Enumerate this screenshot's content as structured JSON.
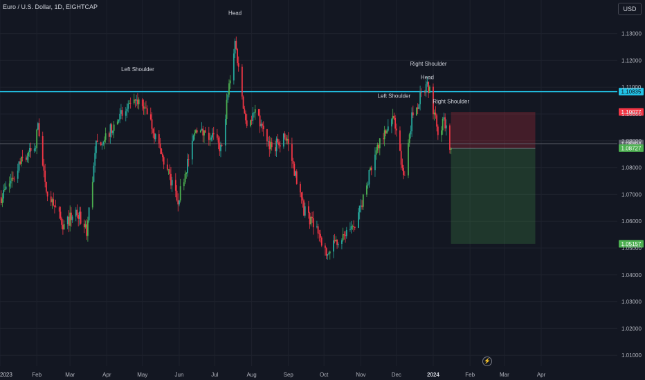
{
  "header": {
    "symbol_line": "Euro / U.S. Dollar, 1D, EIGHTCAP",
    "currency_button": "USD",
    "bolt_icon": "lightning-icon"
  },
  "colors": {
    "background": "#131722",
    "up_candle": "#26a69a",
    "up_candle_alt": "#4caf50",
    "down_candle": "#f23645",
    "resistance_line": "#22c3e6",
    "stop_zone": "#f23645",
    "target_zone": "#4caf50"
  },
  "chart_data": {
    "type": "candlestick",
    "title": "Euro / U.S. Dollar, 1D, EIGHTCAP",
    "x_axis_labels": [
      "2023",
      "Feb",
      "Mar",
      "Apr",
      "May",
      "Jun",
      "Jul",
      "Aug",
      "Sep",
      "Oct",
      "Nov",
      "Dec",
      "2024",
      "Feb",
      "Mar",
      "Apr"
    ],
    "y_axis_ticks": [
      "1.13000",
      "1.12000",
      "1.11000",
      "1.10000",
      "1.09000",
      "1.08000",
      "1.07000",
      "1.06000",
      "1.05000",
      "1.04000",
      "1.03000",
      "1.02000",
      "1.01000"
    ],
    "ylim": [
      1.005,
      1.138
    ],
    "close_path_keypoints": [
      {
        "date": "2023-01-02",
        "price": 1.069
      },
      {
        "date": "2023-01-10",
        "price": 1.075
      },
      {
        "date": "2023-01-20",
        "price": 1.083
      },
      {
        "date": "2023-01-31",
        "price": 1.088
      },
      {
        "date": "2023-02-02",
        "price": 1.097
      },
      {
        "date": "2023-02-08",
        "price": 1.073
      },
      {
        "date": "2023-02-24",
        "price": 1.058
      },
      {
        "date": "2023-03-06",
        "price": 1.064
      },
      {
        "date": "2023-03-15",
        "price": 1.056
      },
      {
        "date": "2023-03-23",
        "price": 1.088
      },
      {
        "date": "2023-04-04",
        "price": 1.094
      },
      {
        "date": "2023-04-14",
        "price": 1.1
      },
      {
        "date": "2023-04-26",
        "price": 1.104
      },
      {
        "date": "2023-05-04",
        "price": 1.103
      },
      {
        "date": "2023-05-15",
        "price": 1.087
      },
      {
        "date": "2023-05-31",
        "price": 1.068
      },
      {
        "date": "2023-06-15",
        "price": 1.094
      },
      {
        "date": "2023-06-30",
        "price": 1.091
      },
      {
        "date": "2023-07-06",
        "price": 1.087
      },
      {
        "date": "2023-07-18",
        "price": 1.127
      },
      {
        "date": "2023-07-27",
        "price": 1.097
      },
      {
        "date": "2023-08-04",
        "price": 1.1
      },
      {
        "date": "2023-08-18",
        "price": 1.087
      },
      {
        "date": "2023-08-30",
        "price": 1.092
      },
      {
        "date": "2023-09-14",
        "price": 1.064
      },
      {
        "date": "2023-09-26",
        "price": 1.057
      },
      {
        "date": "2023-10-03",
        "price": 1.047
      },
      {
        "date": "2023-10-12",
        "price": 1.053
      },
      {
        "date": "2023-10-27",
        "price": 1.057
      },
      {
        "date": "2023-11-14",
        "price": 1.088
      },
      {
        "date": "2023-11-29",
        "price": 1.099
      },
      {
        "date": "2023-12-07",
        "price": 1.076
      },
      {
        "date": "2023-12-14",
        "price": 1.099
      },
      {
        "date": "2023-12-27",
        "price": 1.112
      },
      {
        "date": "2024-01-05",
        "price": 1.094
      },
      {
        "date": "2024-01-10",
        "price": 1.097
      },
      {
        "date": "2024-01-16",
        "price": 1.087
      }
    ],
    "horizontal_levels": [
      {
        "price": 1.10835,
        "label": "1.10835",
        "style": "resistance"
      },
      {
        "price": 1.10077,
        "label": "1.10077",
        "style": "stop"
      },
      {
        "price": 1.08894,
        "label": "1.08894",
        "style": "last"
      },
      {
        "price": 1.08727,
        "label": "1.08727",
        "style": "entry"
      },
      {
        "price": 1.05157,
        "label": "1.05157",
        "style": "target"
      }
    ],
    "position_box": {
      "start_date": "2024-01-16",
      "end_date": "2024-03-27",
      "entry": 1.08727,
      "stop": 1.10077,
      "target": 1.05157,
      "direction": "short"
    },
    "annotations": [
      {
        "text": "Head",
        "date": "2023-07-18",
        "price": 1.137
      },
      {
        "text": "Left Shoulder",
        "date": "2023-04-27",
        "price": 1.116
      },
      {
        "text": "Right Shoulder",
        "date": "2023-12-28",
        "price": 1.118
      },
      {
        "text": "Head",
        "date": "2023-12-27",
        "price": 1.113
      },
      {
        "text": "Left Shoulder",
        "date": "2023-11-29",
        "price": 1.106
      },
      {
        "text": "Right Shoulder",
        "date": "2024-01-16",
        "price": 1.104
      }
    ]
  }
}
